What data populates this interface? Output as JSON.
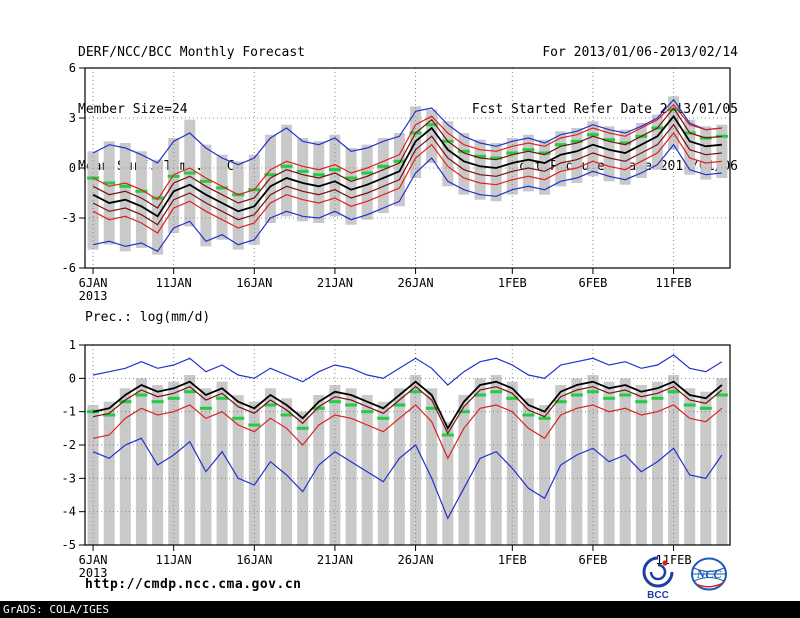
{
  "header": {
    "title": "DERF/NCC/BCC Monthly Forecast",
    "member_size": "Member Size=24",
    "temp_panel_title": "Mean Surf. Temp.: °C",
    "forecast_range": "For 2013/01/06-2013/02/14",
    "refer_date": "Fcst Started Refer Date 2013/01/05",
    "produced_date": "Fcst Produced Date 2013/01/06"
  },
  "prec_panel_title": "Prec.: log(mm/d)",
  "footer": {
    "url": "http://cmdp.ncc.cma.gov.cn",
    "grads_credit": "GrADS: COLA/IGES",
    "bcc_label": "BCC",
    "ncc_label": "NCC"
  },
  "colors": {
    "bar": "#c9c9c9",
    "blue": "#2233cc",
    "red": "#dd2222",
    "darkred": "#7a1010",
    "mean": "#000000",
    "green": "#22cc44",
    "grid": "#888888"
  },
  "chart_data": [
    {
      "type": "line",
      "title": "Mean Surf. Temp.: °C",
      "ylabel": "°C",
      "n_days": 40,
      "x_tick_labels": [
        "6JAN",
        "11JAN",
        "16JAN",
        "21JAN",
        "26JAN",
        "1FEB",
        "6FEB",
        "11FEB"
      ],
      "x_tick_days": [
        0,
        5,
        10,
        15,
        20,
        26,
        31,
        36
      ],
      "x_year_label": "2013",
      "ylim": [
        -6,
        6
      ],
      "yticks": [
        6,
        3,
        0,
        -3,
        -6
      ],
      "bars": {
        "top": [
          1.0,
          1.6,
          1.5,
          1.0,
          0.5,
          1.8,
          2.9,
          1.4,
          0.8,
          0.4,
          0.8,
          2.0,
          2.6,
          1.8,
          1.6,
          2.0,
          1.2,
          1.4,
          1.8,
          2.1,
          3.7,
          3.5,
          2.8,
          2.1,
          1.7,
          1.5,
          1.8,
          2.0,
          1.7,
          2.2,
          2.4,
          2.8,
          2.5,
          2.3,
          2.7,
          3.2,
          4.3,
          2.9,
          2.5,
          2.6
        ],
        "bottom": [
          -4.9,
          -4.6,
          -5.0,
          -4.8,
          -5.2,
          -3.9,
          -3.5,
          -4.7,
          -4.3,
          -4.9,
          -4.6,
          -3.3,
          -2.9,
          -3.2,
          -3.3,
          -2.9,
          -3.4,
          -3.1,
          -2.7,
          -2.3,
          -0.6,
          0.3,
          -1.1,
          -1.6,
          -1.9,
          -2.0,
          -1.6,
          -1.4,
          -1.6,
          -1.1,
          -0.9,
          -0.5,
          -0.8,
          -1.0,
          -0.6,
          -0.1,
          1.1,
          -0.4,
          -0.7,
          -0.6
        ]
      },
      "green_dashes": [
        -0.6,
        -0.9,
        -1.1,
        -1.4,
        -1.8,
        -0.5,
        -0.3,
        -0.8,
        -1.2,
        -1.6,
        -1.3,
        -0.4,
        0.1,
        -0.2,
        -0.4,
        -0.1,
        -0.6,
        -0.3,
        0.1,
        0.4,
        2.1,
        2.6,
        1.6,
        1.0,
        0.7,
        0.6,
        0.9,
        1.1,
        0.9,
        1.4,
        1.6,
        2.0,
        1.7,
        1.5,
        1.9,
        2.4,
        3.5,
        2.1,
        1.8,
        1.9
      ],
      "series": [
        {
          "name": "member-max",
          "color_key": "blue",
          "values": [
            0.9,
            1.4,
            1.2,
            0.8,
            0.3,
            1.6,
            2.1,
            1.2,
            0.6,
            0.2,
            0.6,
            1.8,
            2.4,
            1.6,
            1.4,
            1.8,
            1.0,
            1.2,
            1.6,
            1.9,
            3.4,
            3.6,
            2.6,
            1.9,
            1.5,
            1.3,
            1.6,
            1.8,
            1.5,
            2.0,
            2.2,
            2.6,
            2.3,
            2.1,
            2.5,
            3.0,
            4.1,
            2.7,
            2.3,
            2.4
          ]
        },
        {
          "name": "upper-quartile",
          "color_key": "red",
          "values": [
            -0.6,
            -1.1,
            -0.9,
            -1.3,
            -1.9,
            -0.4,
            0.0,
            -0.6,
            -1.1,
            -1.6,
            -1.3,
            -0.1,
            0.4,
            0.1,
            -0.1,
            0.2,
            -0.3,
            0.0,
            0.4,
            0.8,
            2.6,
            3.1,
            2.1,
            1.4,
            1.1,
            1.0,
            1.3,
            1.5,
            1.3,
            1.8,
            2.0,
            2.4,
            2.1,
            1.9,
            2.4,
            2.9,
            3.8,
            2.6,
            2.3,
            2.4
          ]
        },
        {
          "name": "upper-tercile",
          "color_key": "darkred",
          "values": [
            -1.1,
            -1.6,
            -1.4,
            -1.8,
            -2.4,
            -0.9,
            -0.5,
            -1.1,
            -1.6,
            -2.1,
            -1.8,
            -0.6,
            -0.1,
            -0.4,
            -0.6,
            -0.3,
            -0.8,
            -0.5,
            -0.1,
            0.3,
            2.1,
            2.9,
            1.6,
            0.9,
            0.6,
            0.5,
            0.8,
            1.0,
            0.8,
            1.3,
            1.5,
            1.9,
            1.6,
            1.4,
            1.9,
            2.4,
            3.6,
            2.1,
            1.8,
            1.9
          ]
        },
        {
          "name": "ensemble-mean",
          "color_key": "mean",
          "width": 1.8,
          "values": [
            -1.6,
            -2.1,
            -1.9,
            -2.3,
            -2.9,
            -1.4,
            -1.0,
            -1.6,
            -2.1,
            -2.6,
            -2.3,
            -1.1,
            -0.6,
            -0.9,
            -1.1,
            -0.8,
            -1.3,
            -1.0,
            -0.6,
            -0.2,
            1.6,
            2.4,
            1.1,
            0.4,
            0.1,
            0.0,
            0.3,
            0.5,
            0.3,
            0.8,
            1.0,
            1.4,
            1.1,
            0.9,
            1.4,
            1.9,
            3.1,
            1.6,
            1.3,
            1.4
          ]
        },
        {
          "name": "lower-tercile",
          "color_key": "darkred",
          "values": [
            -2.1,
            -2.6,
            -2.4,
            -2.8,
            -3.4,
            -1.9,
            -1.5,
            -2.1,
            -2.6,
            -3.1,
            -2.8,
            -1.6,
            -1.1,
            -1.4,
            -1.6,
            -1.3,
            -1.8,
            -1.5,
            -1.1,
            -0.7,
            1.1,
            1.9,
            0.6,
            -0.1,
            -0.4,
            -0.5,
            -0.2,
            0.0,
            -0.2,
            0.3,
            0.5,
            0.9,
            0.6,
            0.4,
            0.9,
            1.4,
            2.6,
            1.1,
            0.8,
            0.9
          ]
        },
        {
          "name": "lower-quartile",
          "color_key": "red",
          "values": [
            -2.6,
            -3.1,
            -2.9,
            -3.3,
            -3.9,
            -2.4,
            -2.0,
            -2.6,
            -3.1,
            -3.6,
            -3.3,
            -2.1,
            -1.6,
            -1.9,
            -2.1,
            -1.8,
            -2.3,
            -2.0,
            -1.6,
            -1.2,
            0.6,
            1.4,
            0.1,
            -0.6,
            -0.9,
            -1.0,
            -0.7,
            -0.5,
            -0.7,
            -0.2,
            0.0,
            0.4,
            0.1,
            -0.1,
            0.4,
            0.9,
            2.1,
            0.6,
            0.3,
            0.4
          ]
        },
        {
          "name": "member-min",
          "color_key": "blue",
          "values": [
            -4.6,
            -4.4,
            -4.7,
            -4.5,
            -5.0,
            -3.6,
            -3.2,
            -4.4,
            -4.0,
            -4.6,
            -4.3,
            -3.0,
            -2.6,
            -2.9,
            -3.0,
            -2.6,
            -3.1,
            -2.8,
            -2.4,
            -2.0,
            -0.3,
            0.6,
            -0.8,
            -1.3,
            -1.6,
            -1.7,
            -1.3,
            -1.1,
            -1.3,
            -0.8,
            -0.6,
            -0.2,
            -0.5,
            -0.7,
            -0.3,
            0.2,
            1.4,
            -0.1,
            -0.4,
            -0.3
          ]
        }
      ]
    },
    {
      "type": "line",
      "title": "Prec.: log(mm/d)",
      "ylabel": "log(mm/d)",
      "n_days": 40,
      "x_tick_labels": [
        "6JAN",
        "11JAN",
        "16JAN",
        "21JAN",
        "26JAN",
        "1FEB",
        "6FEB",
        "11FEB"
      ],
      "x_tick_days": [
        0,
        5,
        10,
        15,
        20,
        26,
        31,
        36
      ],
      "x_year_label": "2013",
      "ylim": [
        -5,
        1
      ],
      "yticks": [
        1,
        0,
        -1,
        -2,
        -3,
        -4,
        -5
      ],
      "bars": {
        "top": [
          -0.8,
          -0.7,
          -0.3,
          0.0,
          -0.2,
          -0.1,
          0.1,
          -0.3,
          -0.1,
          -0.5,
          -0.7,
          -0.3,
          -0.6,
          -1.0,
          -0.5,
          -0.2,
          -0.3,
          -0.5,
          -0.7,
          -0.3,
          0.1,
          -0.3,
          -1.3,
          -0.5,
          0.0,
          0.1,
          -0.1,
          -0.6,
          -0.8,
          -0.2,
          0.0,
          0.1,
          -0.1,
          0.0,
          -0.2,
          -0.1,
          0.1,
          -0.3,
          -0.4,
          0.0
        ],
        "bottom": -5
      },
      "green_dashes": [
        -1.0,
        -1.1,
        -0.7,
        -0.5,
        -0.7,
        -0.6,
        -0.4,
        -0.9,
        -0.6,
        -1.2,
        -1.4,
        -0.8,
        -1.1,
        -1.5,
        -0.9,
        -0.7,
        -0.8,
        -1.0,
        -1.2,
        -0.8,
        -0.4,
        -0.9,
        -1.7,
        -1.0,
        -0.5,
        -0.4,
        -0.6,
        -1.1,
        -1.2,
        -0.7,
        -0.5,
        -0.4,
        -0.6,
        -0.5,
        -0.7,
        -0.6,
        -0.4,
        -0.8,
        -0.9,
        -0.5
      ],
      "series": [
        {
          "name": "member-max",
          "color_key": "blue",
          "values": [
            0.1,
            0.2,
            0.3,
            0.5,
            0.3,
            0.4,
            0.6,
            0.2,
            0.4,
            0.1,
            0.0,
            0.3,
            0.1,
            -0.1,
            0.2,
            0.4,
            0.3,
            0.1,
            0.0,
            0.3,
            0.6,
            0.3,
            -0.2,
            0.2,
            0.5,
            0.6,
            0.4,
            0.1,
            0.0,
            0.4,
            0.5,
            0.6,
            0.4,
            0.5,
            0.3,
            0.4,
            0.7,
            0.3,
            0.2,
            0.5
          ]
        },
        {
          "name": "ensemble-mean",
          "color_key": "mean",
          "width": 1.8,
          "values": [
            -1.0,
            -0.9,
            -0.5,
            -0.2,
            -0.4,
            -0.3,
            -0.1,
            -0.5,
            -0.3,
            -0.7,
            -0.9,
            -0.5,
            -0.8,
            -1.2,
            -0.7,
            -0.4,
            -0.5,
            -0.7,
            -0.9,
            -0.5,
            -0.1,
            -0.5,
            -1.5,
            -0.7,
            -0.2,
            -0.1,
            -0.3,
            -0.8,
            -1.0,
            -0.4,
            -0.2,
            -0.1,
            -0.3,
            -0.2,
            -0.4,
            -0.3,
            -0.1,
            -0.5,
            -0.6,
            -0.2
          ]
        },
        {
          "name": "upper-tercile",
          "color_key": "darkred",
          "values": [
            -1.15,
            -1.05,
            -0.65,
            -0.35,
            -0.55,
            -0.45,
            -0.25,
            -0.65,
            -0.45,
            -0.85,
            -1.05,
            -0.65,
            -0.95,
            -1.35,
            -0.85,
            -0.55,
            -0.65,
            -0.85,
            -1.05,
            -0.65,
            -0.25,
            -0.65,
            -1.65,
            -0.85,
            -0.35,
            -0.25,
            -0.45,
            -0.95,
            -1.15,
            -0.55,
            -0.35,
            -0.25,
            -0.45,
            -0.35,
            -0.55,
            -0.45,
            -0.25,
            -0.65,
            -0.75,
            -0.35
          ]
        },
        {
          "name": "lower-quartile",
          "color_key": "red",
          "values": [
            -1.8,
            -1.7,
            -1.2,
            -0.9,
            -1.1,
            -1.0,
            -0.8,
            -1.2,
            -1.0,
            -1.4,
            -1.6,
            -1.2,
            -1.5,
            -2.0,
            -1.4,
            -1.1,
            -1.2,
            -1.4,
            -1.6,
            -1.2,
            -0.8,
            -1.3,
            -2.4,
            -1.5,
            -0.9,
            -0.8,
            -1.0,
            -1.5,
            -1.8,
            -1.1,
            -0.9,
            -0.8,
            -1.0,
            -0.9,
            -1.1,
            -1.0,
            -0.8,
            -1.2,
            -1.3,
            -0.9
          ]
        },
        {
          "name": "member-min",
          "color_key": "blue",
          "values": [
            -2.2,
            -2.4,
            -2.0,
            -1.8,
            -2.6,
            -2.3,
            -1.9,
            -2.8,
            -2.2,
            -3.0,
            -3.2,
            -2.5,
            -2.9,
            -3.4,
            -2.6,
            -2.2,
            -2.5,
            -2.8,
            -3.1,
            -2.4,
            -2.0,
            -3.0,
            -4.2,
            -3.3,
            -2.4,
            -2.2,
            -2.7,
            -3.3,
            -3.6,
            -2.6,
            -2.3,
            -2.1,
            -2.5,
            -2.3,
            -2.8,
            -2.5,
            -2.1,
            -2.9,
            -3.0,
            -2.3
          ]
        }
      ]
    }
  ]
}
